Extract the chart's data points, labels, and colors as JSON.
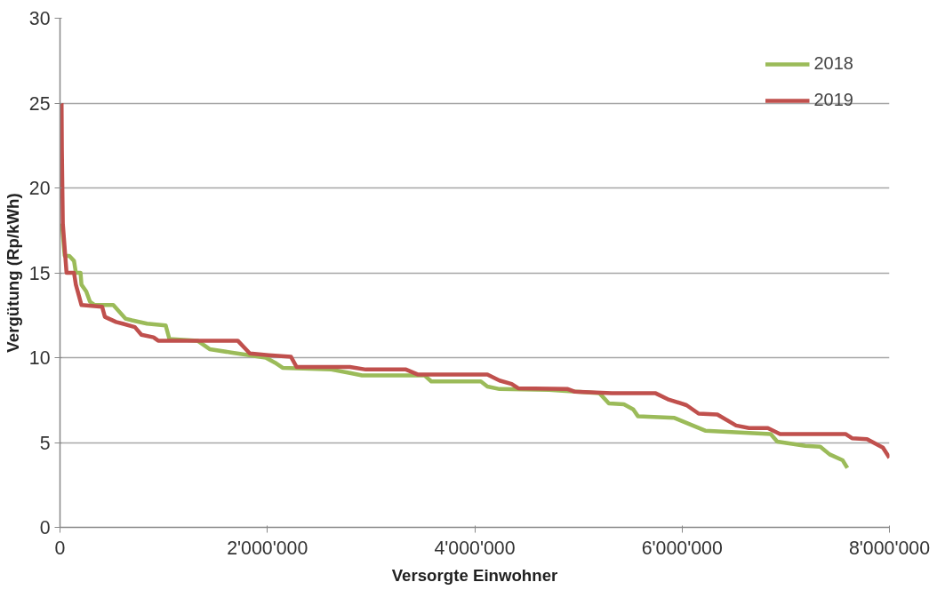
{
  "chart_data": {
    "type": "line",
    "xlabel": "Versorgte Einwohner",
    "ylabel": "Vergütung (Rp/kWh)",
    "xlim": [
      0,
      8000000
    ],
    "ylim": [
      0,
      30
    ],
    "xticks": [
      0,
      {
        "value": 2000000,
        "label": "2'000'000"
      },
      {
        "value": 4000000,
        "label": "4'000'000"
      },
      {
        "value": 6000000,
        "label": "6'000'000"
      },
      {
        "value": 8000000,
        "label": "8'000'000"
      }
    ],
    "yticks": [
      0,
      5,
      10,
      15,
      20,
      25,
      30
    ],
    "grid": "y",
    "legend": "top right",
    "marker": "none",
    "line_style": "solid",
    "series": [
      {
        "name": "2018",
        "color": "#9bbb59",
        "x": [
          18000,
          45000,
          90000,
          135000,
          153000,
          198000,
          207000,
          253000,
          289000,
          334000,
          514000,
          631000,
          694000,
          839000,
          1019000,
          1055000,
          1326000,
          1443000,
          1650000,
          1984000,
          2074000,
          2147000,
          2616000,
          2796000,
          2913000,
          3517000,
          3581000,
          4059000,
          4122000,
          4239000,
          4717000,
          5204000,
          5294000,
          5439000,
          5529000,
          5574000,
          5926000,
          6223000,
          6855000,
          6918000,
          7188000,
          7333000,
          7423000,
          7549000,
          7594000
        ],
        "values": [
          17.9,
          16.0,
          16.0,
          15.7,
          15.0,
          15.0,
          14.3,
          13.9,
          13.3,
          13.1,
          13.1,
          12.3,
          12.2,
          12.0,
          11.9,
          11.1,
          11.0,
          10.5,
          10.3,
          10.0,
          9.7,
          9.4,
          9.3,
          9.1,
          8.95,
          8.95,
          8.6,
          8.6,
          8.3,
          8.15,
          8.1,
          7.9,
          7.3,
          7.25,
          6.95,
          6.55,
          6.45,
          5.7,
          5.5,
          5.05,
          4.8,
          4.75,
          4.3,
          3.95,
          3.5
        ]
      },
      {
        "name": "2019",
        "color": "#c0504d",
        "x": [
          15000,
          18000,
          27000,
          63000,
          135000,
          153000,
          207000,
          406000,
          433000,
          541000,
          604000,
          722000,
          785000,
          902000,
          947000,
          1714000,
          1831000,
          2011000,
          2228000,
          2282000,
          2796000,
          2949000,
          3337000,
          3454000,
          4122000,
          4239000,
          4356000,
          4419000,
          4897000,
          4961000,
          5321000,
          5745000,
          5862000,
          6043000,
          6160000,
          6340000,
          6521000,
          6646000,
          6827000,
          6945000,
          7576000,
          7639000,
          7784000,
          7937000,
          8000000
        ],
        "values": [
          25.0,
          22.2,
          17.9,
          15.0,
          15.0,
          14.3,
          13.1,
          13.0,
          12.4,
          12.1,
          12.0,
          11.8,
          11.35,
          11.2,
          11.0,
          11.0,
          10.25,
          10.15,
          10.05,
          9.45,
          9.45,
          9.3,
          9.3,
          9.0,
          9.0,
          8.65,
          8.45,
          8.2,
          8.15,
          8.0,
          7.9,
          7.9,
          7.55,
          7.2,
          6.7,
          6.65,
          6.0,
          5.85,
          5.85,
          5.5,
          5.5,
          5.25,
          5.2,
          4.7,
          4.1
        ]
      }
    ]
  }
}
